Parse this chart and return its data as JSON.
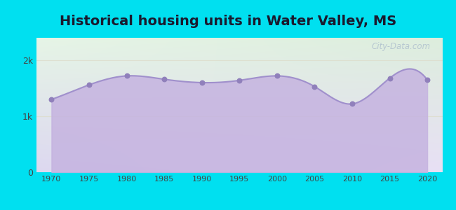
{
  "title": "Historical housing units in Water Valley, MS",
  "title_fontsize": 14,
  "title_fontweight": "bold",
  "title_color": "#1a1a2e",
  "background_outer": "#00e0f0",
  "bg_top_left": "#e6f5e6",
  "bg_bottom_right": "#e8e0f5",
  "area_fill_color": "#c5b3e0",
  "area_fill_alpha": 0.85,
  "line_color": "#a090cc",
  "marker_color": "#9080bb",
  "marker_size": 22,
  "years": [
    1970,
    1975,
    1980,
    1985,
    1990,
    1995,
    2000,
    2005,
    2010,
    2015,
    2020
  ],
  "values": [
    1300,
    1560,
    1720,
    1660,
    1600,
    1640,
    1720,
    1530,
    1220,
    1680,
    1650
  ],
  "ytick_labels": [
    "0",
    "1k",
    "2k"
  ],
  "ytick_values": [
    0,
    1000,
    2000
  ],
  "ylim": [
    0,
    2400
  ],
  "xlim": [
    1968,
    2022
  ],
  "watermark": "City-Data.com",
  "grid_color": "#ddddcc",
  "grid_alpha": 0.8
}
